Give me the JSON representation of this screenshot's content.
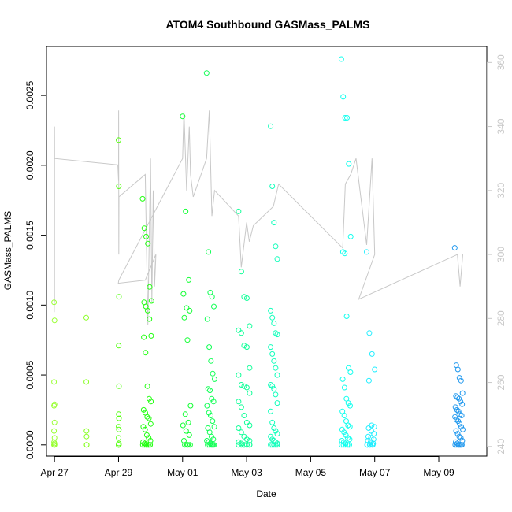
{
  "chart_data": {
    "type": "scatter",
    "title": "ATOM4 Southbound GASMass_PALMS",
    "xlabel": "Date",
    "ylabel": "GASMass_PALMS",
    "xlim": [
      "2018-04-26T18:00",
      "2018-05-10T12:00"
    ],
    "ylim": [
      -8e-05,
      0.00285
    ],
    "ylim_right": [
      237,
      365
    ],
    "x_ticks": [
      {
        "date": "2018-04-27",
        "label": "Apr 27"
      },
      {
        "date": "2018-04-29",
        "label": "Apr 29"
      },
      {
        "date": "2018-05-01",
        "label": "May 01"
      },
      {
        "date": "2018-05-03",
        "label": "May 03"
      },
      {
        "date": "2018-05-05",
        "label": "May 05"
      },
      {
        "date": "2018-05-07",
        "label": "May 07"
      },
      {
        "date": "2018-05-09",
        "label": "May 09"
      }
    ],
    "y_ticks": [
      {
        "value": 0,
        "label": "0.0000"
      },
      {
        "value": 0.0005,
        "label": "0.0005"
      },
      {
        "value": 0.001,
        "label": "0.0010"
      },
      {
        "value": 0.0015,
        "label": "0.0015"
      },
      {
        "value": 0.002,
        "label": "0.0020"
      },
      {
        "value": 0.0025,
        "label": "0.0025"
      }
    ],
    "y2_ticks": [
      {
        "value": 240,
        "label": "240"
      },
      {
        "value": 260,
        "label": "260"
      },
      {
        "value": 280,
        "label": "280"
      },
      {
        "value": 300,
        "label": "300"
      },
      {
        "value": 320,
        "label": "320"
      },
      {
        "value": 340,
        "label": "340"
      },
      {
        "value": 360,
        "label": "360"
      }
    ],
    "grid": false,
    "colors": {
      "line": "#c8c8c8",
      "axis": "#000000",
      "right_axis": "#c8c8c8"
    },
    "flights": [
      {
        "start": "2018-04-26T23:40",
        "end": "2018-04-27T00:20",
        "color": "#99ff33",
        "values": [
          0.00102,
          0.00089,
          0.00045,
          0.00029,
          0.00028,
          0.00016,
          0.0001,
          5e-05,
          2e-05,
          1e-05,
          0.0,
          0.0,
          0.0,
          0.0
        ]
      },
      {
        "start": "2018-04-27T23:50",
        "end": "2018-04-28T00:10",
        "color": "#88ff22",
        "values": [
          0.00091,
          0.00045,
          0.0001,
          6e-05,
          0.0,
          0.0
        ]
      },
      {
        "start": "2018-04-29T00:00",
        "end": "2018-04-29T00:20",
        "color": "#55ff11",
        "values": [
          0.00218,
          0.00185,
          0.00106,
          0.00071,
          0.00042,
          0.00022,
          0.00019,
          0.00013,
          0.00011,
          5e-05,
          1e-05,
          0.0,
          0.0,
          0.0,
          0.0
        ]
      },
      {
        "start": "2018-04-29T18:00",
        "end": "2018-04-30T00:40",
        "color": "#22ff11",
        "values": [
          0.00176,
          0.00155,
          0.00149,
          0.00144,
          0.00113,
          0.00103,
          0.00102,
          0.00099,
          0.00096,
          0.0009,
          0.00078,
          0.00077,
          0.00066,
          0.00042,
          0.00033,
          0.00031,
          0.00025,
          0.00023,
          0.0002,
          0.00019,
          0.00015,
          0.00013,
          0.00011,
          7e-05,
          5e-05,
          3e-05,
          2e-05,
          1e-05,
          0.0,
          0.0,
          0.0,
          0.0,
          0.0,
          0.0,
          0.0,
          0.0
        ]
      },
      {
        "start": "2018-05-01T00:00",
        "end": "2018-05-01T06:00",
        "color": "#11ff33",
        "values": [
          0.00235,
          0.00167,
          0.00118,
          0.00108,
          0.00098,
          0.00096,
          0.00091,
          0.00075,
          0.00028,
          0.00022,
          0.00016,
          0.00014,
          0.0001,
          7e-05,
          3e-05,
          0.0,
          0.0,
          0.0,
          0.0
        ]
      },
      {
        "start": "2018-05-01T18:00",
        "end": "2018-05-02T00:00",
        "color": "#11ff55",
        "values": [
          0.00266,
          0.00138,
          0.00109,
          0.00106,
          0.00099,
          0.0009,
          0.0007,
          0.0006,
          0.00051,
          0.00047,
          0.0004,
          0.00039,
          0.00033,
          0.00031,
          0.00028,
          0.00023,
          0.00021,
          0.00017,
          0.00013,
          0.00012,
          9e-05,
          6e-05,
          4e-05,
          3e-05,
          2e-05,
          1e-05,
          0.0,
          0.0,
          0.0,
          0.0,
          0.0,
          0.0
        ]
      },
      {
        "start": "2018-05-02T18:00",
        "end": "2018-05-03T04:00",
        "color": "#11ff99",
        "values": [
          0.00167,
          0.00124,
          0.00106,
          0.00105,
          0.00085,
          0.00082,
          0.0008,
          0.00071,
          0.0007,
          0.00055,
          0.0005,
          0.00043,
          0.00042,
          0.00041,
          0.00037,
          0.00031,
          0.00027,
          0.00021,
          0.00016,
          0.00014,
          0.00012,
          9e-05,
          6e-05,
          4e-05,
          3e-05,
          2e-05,
          1e-05,
          0.0,
          0.0,
          0.0,
          0.0,
          0.0,
          0.0,
          0.0,
          0.0
        ]
      },
      {
        "start": "2018-05-03T18:00",
        "end": "2018-05-04T00:00",
        "color": "#11ffbb",
        "values": [
          0.00228,
          0.00185,
          0.00159,
          0.00142,
          0.00133,
          0.00096,
          0.00091,
          0.00087,
          0.0008,
          0.00079,
          0.0007,
          0.00065,
          0.0006,
          0.00055,
          0.0005,
          0.00043,
          0.00042,
          0.0004,
          0.00036,
          0.0003,
          0.00024,
          0.00016,
          0.00012,
          0.0001,
          8e-05,
          6e-05,
          4e-05,
          3e-05,
          2e-05,
          1e-05,
          0.0,
          0.0,
          0.0,
          0.0,
          0.0
        ]
      },
      {
        "start": "2018-05-05T23:00",
        "end": "2018-05-06T06:00",
        "color": "#11ffee",
        "values": [
          0.00276,
          0.00249,
          0.00234,
          0.00234,
          0.00201,
          0.00149,
          0.00138,
          0.00137,
          0.00092,
          0.00055,
          0.00052,
          0.00047,
          0.00041,
          0.00033,
          0.0003,
          0.00028,
          0.00024,
          0.00021,
          0.00017,
          0.00014,
          0.00013,
          0.00011,
          9e-05,
          7e-05,
          5e-05,
          4e-05,
          3e-05,
          2e-05,
          1e-05,
          0.0,
          0.0,
          0.0,
          0.0,
          0.0,
          0.0,
          0.0
        ]
      },
      {
        "start": "2018-05-06T18:00",
        "end": "2018-05-07T00:00",
        "color": "#22eeff",
        "values": [
          0.00138,
          0.0008,
          0.00065,
          0.00054,
          0.00046,
          0.00014,
          0.00013,
          0.00012,
          0.0001,
          8e-05,
          6e-05,
          5e-05,
          4e-05,
          3e-05,
          2e-05,
          1e-05,
          0.0,
          0.0,
          0.0,
          0.0,
          0.0,
          0.0
        ]
      },
      {
        "start": "2018-05-09T12:00",
        "end": "2018-05-09T18:00",
        "color": "#2299ee",
        "values": [
          0.00141,
          0.00057,
          0.00054,
          0.00048,
          0.00046,
          0.00037,
          0.00035,
          0.00034,
          0.00033,
          0.00031,
          0.00029,
          0.00027,
          0.00025,
          0.00024,
          0.00022,
          0.00021,
          0.0002,
          0.00018,
          0.00017,
          0.00015,
          0.00013,
          0.00011,
          0.0001,
          8e-05,
          6e-05,
          5e-05,
          3e-05,
          2e-05,
          1e-05,
          0.0,
          0.0,
          0.0,
          0.0,
          0.0,
          0.0,
          0.0,
          0.0
        ]
      }
    ],
    "right_axis_series": [
      {
        "x": "2018-04-26T23:50",
        "y": 282
      },
      {
        "x": "2018-04-26T23:55",
        "y": 290
      },
      {
        "x": "2018-04-27T00:00",
        "y": 285
      },
      {
        "x": "2018-04-27T00:02",
        "y": 340
      },
      {
        "x": "2018-04-27T00:05",
        "y": 330
      },
      {
        "x": "2018-04-28T23:30",
        "y": 328
      },
      {
        "x": "2018-04-29T00:00",
        "y": 323
      },
      {
        "x": "2018-04-29T00:05",
        "y": 345
      },
      {
        "x": "2018-04-29T00:10",
        "y": 300
      },
      {
        "x": "2018-04-29T00:20",
        "y": 318
      },
      {
        "x": "2018-04-29T20:00",
        "y": 325
      },
      {
        "x": "2018-04-29T22:00",
        "y": 278
      },
      {
        "x": "2018-04-30T00:00",
        "y": 330
      },
      {
        "x": "2018-04-30T01:00",
        "y": 285
      },
      {
        "x": "2018-04-30T02:00",
        "y": 320
      },
      {
        "x": "2018-04-30T03:00",
        "y": 290
      },
      {
        "x": "2018-04-30T04:00",
        "y": 300
      },
      {
        "x": "2018-04-29T20:00",
        "y": 292
      },
      {
        "x": "2018-04-28T23:50",
        "y": 291
      },
      {
        "x": "2018-04-29T00:10",
        "y": 292
      },
      {
        "x": "2018-05-01T00:00",
        "y": 330
      },
      {
        "x": "2018-05-01T01:00",
        "y": 345
      },
      {
        "x": "2018-05-01T03:00",
        "y": 320
      },
      {
        "x": "2018-05-01T05:00",
        "y": 340
      },
      {
        "x": "2018-05-01T06:00",
        "y": 325
      },
      {
        "x": "2018-05-01T08:00",
        "y": 318
      },
      {
        "x": "2018-05-01T18:00",
        "y": 330
      },
      {
        "x": "2018-05-01T20:00",
        "y": 345
      },
      {
        "x": "2018-05-01T22:00",
        "y": 312
      },
      {
        "x": "2018-05-02T00:00",
        "y": 320
      },
      {
        "x": "2018-05-02T18:00",
        "y": 312
      },
      {
        "x": "2018-05-02T20:00",
        "y": 296
      },
      {
        "x": "2018-05-03T00:00",
        "y": 310
      },
      {
        "x": "2018-05-03T02:00",
        "y": 304
      },
      {
        "x": "2018-05-03T05:00",
        "y": 309
      },
      {
        "x": "2018-05-03T20:00",
        "y": 315
      },
      {
        "x": "2018-05-04T00:00",
        "y": 322
      },
      {
        "x": "2018-05-06T00:00",
        "y": 302
      },
      {
        "x": "2018-05-06T02:00",
        "y": 322
      },
      {
        "x": "2018-05-06T06:00",
        "y": 325
      },
      {
        "x": "2018-05-06T10:00",
        "y": 330
      },
      {
        "x": "2018-05-06T18:00",
        "y": 303
      },
      {
        "x": "2018-05-06T22:00",
        "y": 330
      },
      {
        "x": "2018-05-07T00:00",
        "y": 300
      },
      {
        "x": "2018-05-06T12:00",
        "y": 286
      },
      {
        "x": "2018-05-09T14:00",
        "y": 300
      },
      {
        "x": "2018-05-09T16:00",
        "y": 290
      },
      {
        "x": "2018-05-09T18:00",
        "y": 300
      }
    ]
  }
}
